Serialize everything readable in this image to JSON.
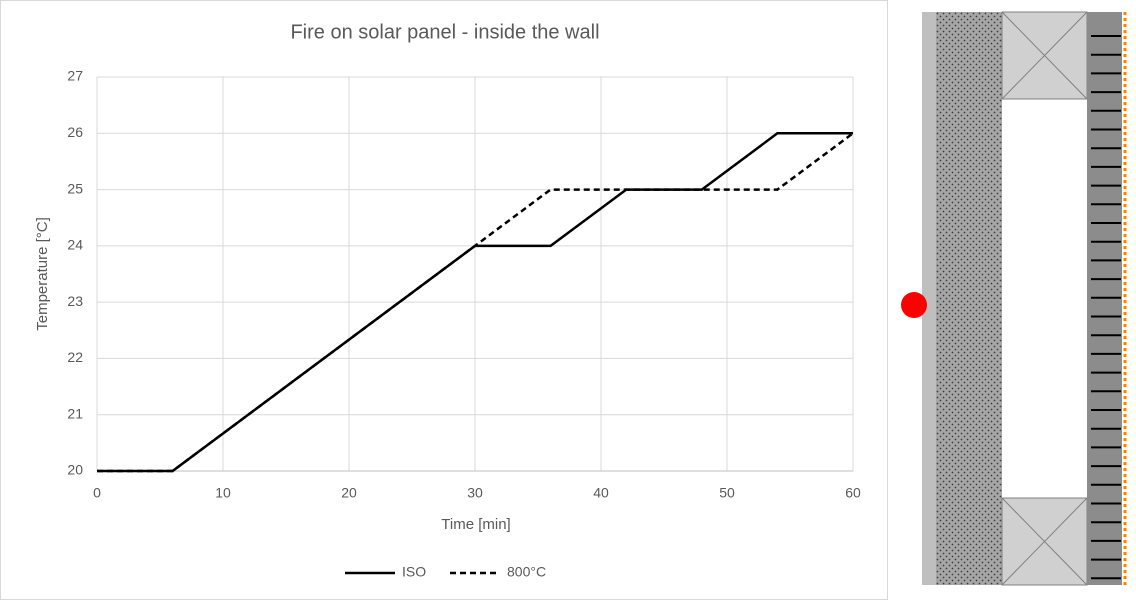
{
  "chart_data": {
    "type": "line",
    "title": "Fire on solar panel - inside the wall",
    "x_label": "Time [min]",
    "y_label": "Temperature [°C]",
    "x": [
      0,
      6,
      30,
      36,
      42,
      48,
      54,
      60
    ],
    "series": [
      {
        "name": "ISO",
        "color": "#000000",
        "line_style": "solid",
        "values": [
          20,
          20,
          24,
          24,
          25,
          25,
          26,
          26
        ]
      },
      {
        "name": "800°C",
        "color": "#000000",
        "line_style": "dashed",
        "values": [
          20,
          20,
          24,
          25,
          25,
          25,
          25,
          26
        ]
      }
    ],
    "xlim": [
      0,
      60
    ],
    "ylim": [
      20,
      27
    ],
    "xticks": [
      0,
      10,
      20,
      30,
      40,
      50,
      60
    ],
    "yticks": [
      20,
      21,
      22,
      23,
      24,
      25,
      26,
      27
    ],
    "grid": true
  }
}
